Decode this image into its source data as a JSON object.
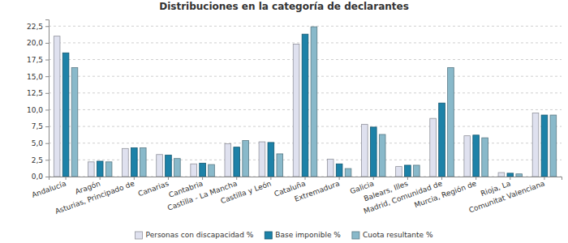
{
  "chart_data": {
    "type": "bar",
    "title": "Distribuciones en la categoría de declarantes",
    "categories": [
      "Andalucía",
      "Aragón",
      "Asturias, Principado de",
      "Canarias",
      "Cantabria",
      "Castilla - La Mancha",
      "Castilla y León",
      "Cataluña",
      "Extremadura",
      "Galicia",
      "Balears, Illes",
      "Madrid, Comunidad de",
      "Murcia, Región de",
      "Rioja, La",
      "Comunitat Valenciana"
    ],
    "series": [
      {
        "name": "Personas con discapacidad %",
        "color": "#dfe1ef",
        "values": [
          21.0,
          2.2,
          4.2,
          3.3,
          1.9,
          4.9,
          5.2,
          19.8,
          2.6,
          7.8,
          1.5,
          8.7,
          6.1,
          0.6,
          9.5
        ]
      },
      {
        "name": "Base imponible %",
        "color": "#1d82a8",
        "values": [
          18.5,
          2.3,
          4.3,
          3.2,
          2.0,
          4.4,
          5.1,
          21.3,
          1.9,
          7.4,
          1.7,
          11.0,
          6.2,
          0.5,
          9.2
        ]
      },
      {
        "name": "Cuota resultante %",
        "color": "#89b9ca",
        "values": [
          16.3,
          2.2,
          4.3,
          2.7,
          1.8,
          5.4,
          3.4,
          22.4,
          1.2,
          6.3,
          1.7,
          16.3,
          5.8,
          0.4,
          9.2
        ]
      }
    ],
    "ylim": [
      0,
      23.5
    ],
    "yticks": [
      {
        "value": 0,
        "label": "0,0"
      },
      {
        "value": 2.5,
        "label": "2,5"
      },
      {
        "value": 5,
        "label": "5,0"
      },
      {
        "value": 7.5,
        "label": "7,5"
      },
      {
        "value": 10,
        "label": "10,0"
      },
      {
        "value": 12.5,
        "label": "12,5"
      },
      {
        "value": 15,
        "label": "15,0"
      },
      {
        "value": 17.5,
        "label": "17,5"
      },
      {
        "value": 20,
        "label": "20,0"
      },
      {
        "value": 22.5,
        "label": "22,5"
      }
    ],
    "grid": true,
    "legend": "bottom"
  }
}
